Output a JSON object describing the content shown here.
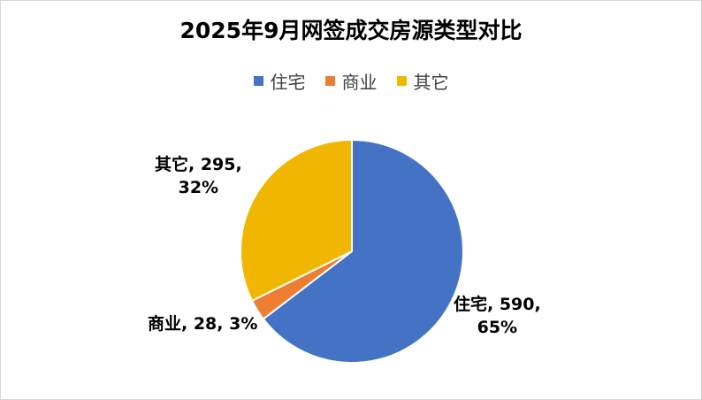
{
  "chart_data": {
    "type": "pie",
    "title": "2025年9月网签成交房源类型对比",
    "categories": [
      "住宅",
      "商业",
      "其它"
    ],
    "values": [
      590,
      28,
      295
    ],
    "percents": [
      "65%",
      "3%",
      "32%"
    ],
    "colors": [
      "#4472C4",
      "#ED7D31",
      "#F1B700"
    ],
    "legend_position": "top",
    "data_labels": [
      {
        "line1": "住宅, 590,",
        "line2": "65%"
      },
      {
        "line1": "商业, 28, 3%",
        "line2": ""
      },
      {
        "line1": "其它, 295,",
        "line2": "32%"
      }
    ]
  }
}
